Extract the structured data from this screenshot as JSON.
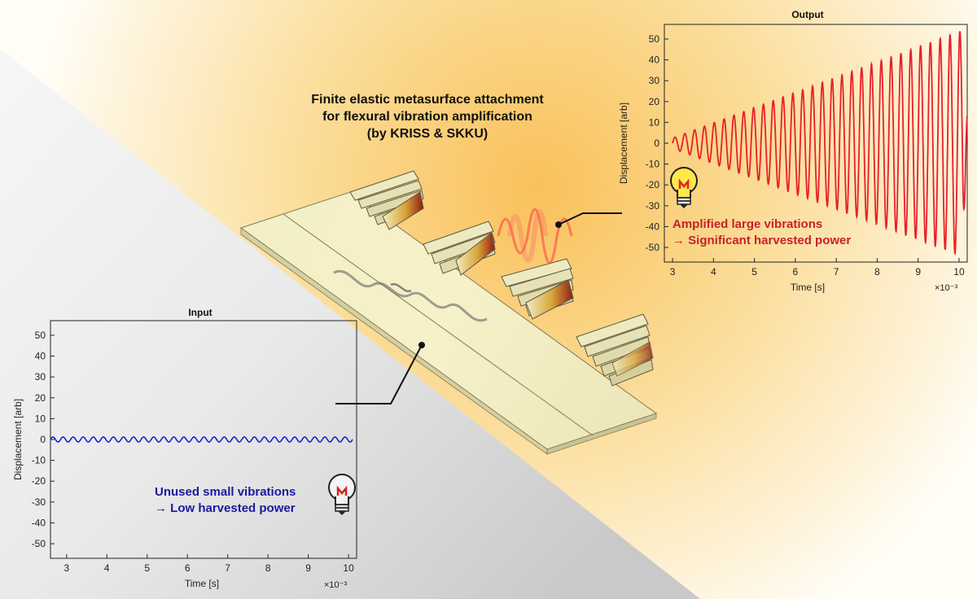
{
  "title": {
    "line1": "Finite elastic metasurface attachment",
    "line2": "for flexural vibration amplification",
    "line3": "(by KRISS & SKKU)"
  },
  "output_caption": {
    "line1": "Amplified large vibrations",
    "line2": "→ Significant harvested power"
  },
  "input_caption": {
    "line1": "Unused small vibrations",
    "line2": "→ Low harvested power"
  },
  "colors": {
    "output_wave": "#e8202a",
    "input_wave": "#1f23c8",
    "output_text": "#c8202a",
    "input_text": "#1a1aa0",
    "background_glow": "#fbd27a"
  },
  "icons": [
    "lightbulb-bright-icon",
    "lightbulb-dim-icon"
  ],
  "chart_data": [
    {
      "type": "line",
      "title": "Output",
      "xlabel": "Time [s]",
      "ylabel": "Displacement [arb]",
      "x_multiplier": "×10⁻³",
      "xlim": [
        2.8,
        10.2
      ],
      "ylim": [
        -57,
        57
      ],
      "x_ticks": [
        "3",
        "4",
        "5",
        "6",
        "7",
        "8",
        "9",
        "10"
      ],
      "y_ticks": [
        "50",
        "40",
        "30",
        "20",
        "10",
        "0",
        "-10",
        "-20",
        "-30",
        "-40",
        "-50"
      ],
      "series": [
        {
          "signal": "growing sinusoid",
          "x_start": 3,
          "x_end": 10.2,
          "cycles": 30,
          "amplitude_start": 2.5,
          "amplitude_end": 55,
          "final_value": 13
        }
      ]
    },
    {
      "type": "line",
      "title": "Input",
      "xlabel": "Time [s]",
      "ylabel": "Displacement [arb]",
      "x_multiplier": "×10⁻³",
      "xlim": [
        2.6,
        10.2
      ],
      "ylim": [
        -57,
        57
      ],
      "x_ticks": [
        "3",
        "4",
        "5",
        "6",
        "7",
        "8",
        "9",
        "10"
      ],
      "y_ticks": [
        "50",
        "40",
        "30",
        "20",
        "10",
        "0",
        "-10",
        "-20",
        "-30",
        "-40",
        "-50"
      ],
      "series": [
        {
          "signal": "constant sinusoid",
          "x_start": 2.6,
          "x_end": 10.1,
          "cycles": 30,
          "amplitude": 1.2
        }
      ]
    }
  ]
}
